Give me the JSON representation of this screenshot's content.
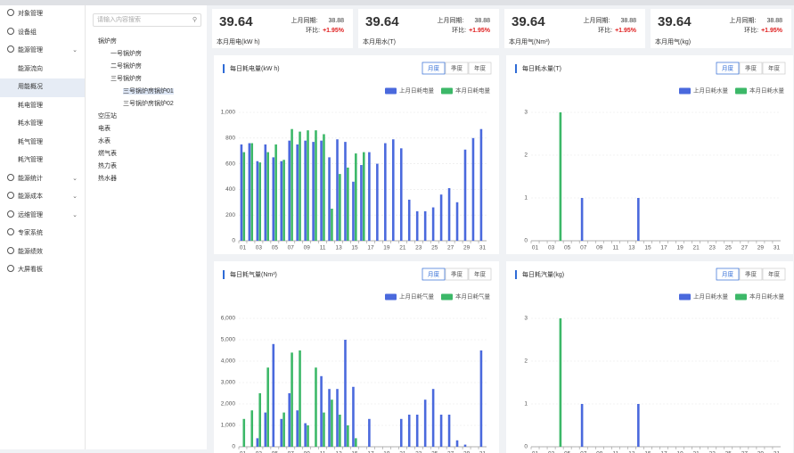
{
  "sidebar": [
    {
      "label": "对象管理"
    },
    {
      "label": "设备组"
    },
    {
      "label": "能源管理",
      "has_submenu": true,
      "children": [
        {
          "label": "能源流向"
        },
        {
          "label": "用能概况",
          "selected": true
        },
        {
          "label": "耗电管理"
        },
        {
          "label": "耗水管理"
        },
        {
          "label": "耗气管理"
        },
        {
          "label": "耗汽管理"
        }
      ]
    },
    {
      "label": "能源统计",
      "has_submenu": true
    },
    {
      "label": "能源成本",
      "has_submenu": true
    },
    {
      "label": "远维管理",
      "has_submenu": true
    },
    {
      "label": "专家系统"
    },
    {
      "label": "能源绩效"
    },
    {
      "label": "大屏看板"
    }
  ],
  "tree": {
    "search_placeholder": "请输入内容搜索",
    "nodes": [
      {
        "label": "锅炉房",
        "children": [
          {
            "label": "一号锅炉房"
          },
          {
            "label": "二号锅炉房"
          },
          {
            "label": "三号锅炉房",
            "children": [
              {
                "label": "三号锅炉房锅炉01",
                "selected": true
              },
              {
                "label": "三号锅炉房锅炉02"
              }
            ]
          }
        ]
      },
      {
        "label": "空压站"
      },
      {
        "label": "电表"
      },
      {
        "label": "水表"
      },
      {
        "label": "燃气表"
      },
      {
        "label": "热力表"
      },
      {
        "label": "热水器"
      }
    ]
  },
  "cards": [
    {
      "value": "39.64",
      "prev_label": "上月同期:",
      "prev_value": "38.88",
      "ratio_label": "环比:",
      "ratio": "+1.95%",
      "label": "本月用电(kW h)"
    },
    {
      "value": "39.64",
      "prev_label": "上月同期:",
      "prev_value": "38.88",
      "ratio_label": "环比:",
      "ratio": "+1.95%",
      "label": "本月用水(T)"
    },
    {
      "value": "39.64",
      "prev_label": "上月同期:",
      "prev_value": "38.88",
      "ratio_label": "环比:",
      "ratio": "+1.95%",
      "label": "本月用气(Nm³)"
    },
    {
      "value": "39.64",
      "prev_label": "上月同期:",
      "prev_value": "38.88",
      "ratio_label": "环比:",
      "ratio": "+1.95%",
      "label": "本月用气(kg)"
    }
  ],
  "chart_data": [
    {
      "type": "bar",
      "title": "每日耗电量(kW h)",
      "tabs": [
        "月度",
        "季度",
        "年度"
      ],
      "active_tab": 0,
      "categories": [
        "01",
        null,
        "03",
        null,
        "05",
        null,
        "07",
        null,
        "09",
        null,
        "11",
        null,
        "13",
        null,
        "15",
        null,
        "17",
        null,
        "19",
        null,
        "21",
        null,
        "23",
        null,
        "25",
        null,
        "27",
        null,
        "29",
        null,
        "31"
      ],
      "series": [
        {
          "name": "上月日耗电量",
          "color": "#4a69dd",
          "values": [
            750,
            760,
            620,
            750,
            650,
            620,
            780,
            750,
            780,
            770,
            780,
            650,
            790,
            770,
            460,
            590,
            690,
            600,
            760,
            790,
            720,
            320,
            230,
            230,
            260,
            360,
            410,
            300,
            710,
            800,
            870
          ]
        },
        {
          "name": "本月日耗电量",
          "color": "#3cb868",
          "values": [
            690,
            760,
            610,
            690,
            750,
            630,
            870,
            850,
            860,
            860,
            830,
            250,
            520,
            570,
            680,
            690,
            null,
            null,
            null,
            null,
            null,
            null,
            null,
            null,
            null,
            null,
            null,
            null,
            null,
            null,
            null
          ]
        }
      ],
      "ylim": [
        0,
        1000
      ],
      "yticks": [
        0,
        200,
        400,
        600,
        800,
        {
          "value": 1000,
          "label": "1,000"
        }
      ],
      "grid": true
    },
    {
      "type": "bar",
      "title": "每日耗水量(T)",
      "tabs": [
        "月度",
        "季度",
        "年度"
      ],
      "active_tab": 0,
      "categories": [
        "01",
        null,
        "03",
        null,
        "05",
        null,
        "07",
        null,
        "09",
        null,
        "11",
        null,
        "13",
        null,
        "15",
        null,
        "17",
        null,
        "19",
        null,
        "21",
        null,
        "23",
        null,
        "25",
        null,
        "27",
        null,
        "29",
        null,
        "31"
      ],
      "series": [
        {
          "name": "上月日耗水量",
          "color": "#4a69dd",
          "values": [
            0,
            0,
            0,
            0,
            0,
            0,
            1,
            0,
            0,
            0,
            0,
            0,
            0,
            1,
            0,
            0,
            0,
            0,
            0,
            0,
            0,
            0,
            0,
            0,
            0,
            0,
            0,
            0,
            0,
            0,
            0
          ]
        },
        {
          "name": "本月日耗水量",
          "color": "#3cb868",
          "values": [
            0,
            0,
            0,
            3,
            0,
            0,
            0,
            0,
            0,
            0,
            0,
            0,
            0,
            0,
            0,
            0,
            null,
            null,
            null,
            null,
            null,
            null,
            null,
            null,
            null,
            null,
            null,
            null,
            null,
            null,
            null
          ]
        }
      ],
      "ylim": [
        0,
        3
      ],
      "yticks": [
        0,
        1,
        2,
        3
      ],
      "grid": true
    },
    {
      "type": "bar",
      "title": "每日耗气量(Nm³)",
      "tabs": [
        "月度",
        "季度",
        "年度"
      ],
      "active_tab": 0,
      "categories": [
        "01",
        null,
        "03",
        null,
        "05",
        null,
        "07",
        null,
        "09",
        null,
        "11",
        null,
        "13",
        null,
        "15",
        null,
        "17",
        null,
        "19",
        null,
        "21",
        null,
        "23",
        null,
        "25",
        null,
        "27",
        null,
        "29",
        null,
        "31"
      ],
      "series": [
        {
          "name": "上月日耗气量",
          "color": "#4a69dd",
          "values": [
            0,
            0,
            400,
            1600,
            4800,
            1300,
            2500,
            1700,
            1100,
            0,
            3300,
            2700,
            2700,
            5000,
            2800,
            0,
            1300,
            0,
            0,
            0,
            1300,
            1500,
            1500,
            2200,
            2700,
            1500,
            1500,
            300,
            100,
            0,
            4500
          ]
        },
        {
          "name": "本月日耗气量",
          "color": "#3cb868",
          "values": [
            1300,
            1700,
            2500,
            3700,
            0,
            1600,
            4400,
            4500,
            1000,
            3700,
            1600,
            2200,
            1500,
            1000,
            400,
            0,
            null,
            null,
            null,
            null,
            null,
            null,
            null,
            null,
            null,
            null,
            null,
            null,
            null,
            null,
            null
          ]
        }
      ],
      "ylim": [
        0,
        6000
      ],
      "yticks": [
        0,
        {
          "value": 1000,
          "label": "1,000"
        },
        {
          "value": 2000,
          "label": "2,000"
        },
        {
          "value": 3000,
          "label": "3,000"
        },
        {
          "value": 4000,
          "label": "4,000"
        },
        {
          "value": 5000,
          "label": "5,000"
        },
        {
          "value": 6000,
          "label": "6,000"
        }
      ],
      "grid": true
    },
    {
      "type": "bar",
      "title": "每日耗汽量(kg)",
      "tabs": [
        "月度",
        "季度",
        "年度"
      ],
      "active_tab": 0,
      "categories": [
        "01",
        null,
        "03",
        null,
        "05",
        null,
        "07",
        null,
        "09",
        null,
        "11",
        null,
        "13",
        null,
        "15",
        null,
        "17",
        null,
        "19",
        null,
        "21",
        null,
        "23",
        null,
        "25",
        null,
        "27",
        null,
        "29",
        null,
        "31"
      ],
      "series": [
        {
          "name": "上月日耗水量",
          "color": "#4a69dd",
          "values": [
            0,
            0,
            0,
            0,
            0,
            0,
            1,
            0,
            0,
            0,
            0,
            0,
            0,
            1,
            0,
            0,
            0,
            0,
            0,
            0,
            0,
            0,
            0,
            0,
            0,
            0,
            0,
            0,
            0,
            0,
            0
          ]
        },
        {
          "name": "本月日耗水量",
          "color": "#3cb868",
          "values": [
            0,
            0,
            0,
            3,
            0,
            0,
            0,
            0,
            0,
            0,
            0,
            0,
            0,
            0,
            0,
            0,
            null,
            null,
            null,
            null,
            null,
            null,
            null,
            null,
            null,
            null,
            null,
            null,
            null,
            null,
            null
          ]
        }
      ],
      "ylim": [
        0,
        3
      ],
      "yticks": [
        0,
        1,
        2,
        3
      ],
      "grid": true
    }
  ]
}
